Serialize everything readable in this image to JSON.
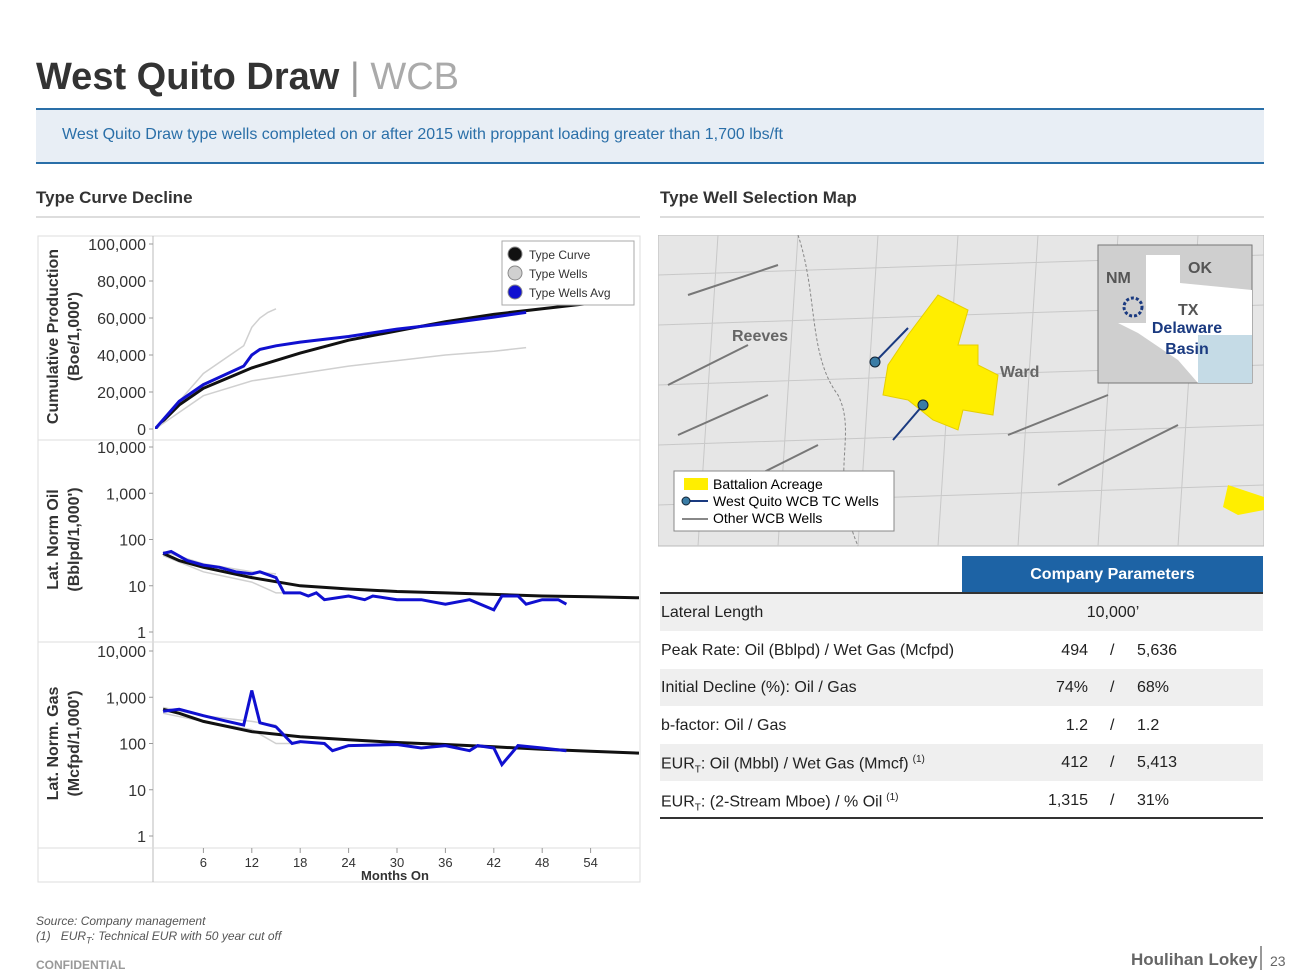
{
  "header": {
    "title": "West Quito Draw",
    "separator": "|",
    "suffix": "WCB",
    "banner": "West Quito Draw type wells completed on or after 2015 with proppant loading greater than 1,700 lbs/ft"
  },
  "left_section": "Type Curve Decline",
  "right_section": "Type Well Selection Map",
  "chart_data": [
    {
      "type": "line",
      "scale": "linear",
      "ylabel": [
        "Cumulative Production",
        "(Boe/1,000')"
      ],
      "xlim": [
        0,
        60
      ],
      "ylim": [
        0,
        100000
      ],
      "yticks": [
        0,
        {
          "value": 20000,
          "label": "20,000"
        },
        {
          "value": 40000,
          "label": "40,000"
        },
        {
          "value": 60000,
          "label": "60,000"
        },
        {
          "value": 80000,
          "label": "80,000"
        },
        {
          "value": 100000,
          "label": "100,000"
        }
      ],
      "series": [
        {
          "name": "Type Curve",
          "color": "#111111",
          "x": [
            0,
            3,
            6,
            12,
            18,
            24,
            30,
            36,
            42,
            48,
            54,
            57
          ],
          "values": [
            0,
            13000,
            22000,
            33000,
            41000,
            48000,
            53000,
            58000,
            62000,
            65000,
            68000,
            69000
          ]
        },
        {
          "name": "Type Wells",
          "color": "#d0d0d0",
          "x": [
            0,
            6,
            11,
            12,
            13,
            14,
            15
          ],
          "values": [
            0,
            30000,
            45000,
            55000,
            60000,
            63000,
            65000
          ]
        },
        {
          "color": "#d0d0d0",
          "x": [
            0,
            6,
            12,
            18,
            24,
            30,
            36,
            42,
            46
          ],
          "values": [
            0,
            18000,
            26000,
            30000,
            34000,
            37000,
            40000,
            42000,
            44000
          ]
        },
        {
          "name": "Type Wells Avg",
          "color": "#1010d0",
          "x": [
            0,
            3,
            6,
            9,
            11,
            12,
            13,
            15,
            18,
            24,
            30,
            36,
            42,
            46
          ],
          "values": [
            0,
            15000,
            24000,
            30000,
            34000,
            40000,
            43000,
            45000,
            47000,
            50000,
            54000,
            57000,
            60500,
            63000
          ]
        }
      ]
    },
    {
      "type": "line",
      "scale": "log",
      "ylabel": [
        "Lat. Norm Oil",
        "(Bblpd/1,000')"
      ],
      "xlim": [
        0,
        60
      ],
      "ylim": [
        1,
        10000
      ],
      "yticks": [
        1,
        10,
        100,
        {
          "value": 1000,
          "label": "1,000"
        },
        {
          "value": 10000,
          "label": "10,000"
        }
      ],
      "series": [
        {
          "color": "#d0d0d0",
          "x": [
            1,
            6,
            12,
            15,
            18
          ],
          "values": [
            45,
            20,
            12,
            7,
            7
          ]
        },
        {
          "color": "#d0d0d0",
          "x": [
            1,
            6,
            12,
            15
          ],
          "values": [
            55,
            30,
            20,
            18
          ]
        },
        {
          "color": "#111111",
          "x": [
            1,
            3,
            6,
            12,
            18,
            24,
            30,
            36,
            42,
            48,
            54,
            60
          ],
          "values": [
            50,
            35,
            25,
            15,
            10,
            8.5,
            7.5,
            7,
            6.5,
            6,
            5.8,
            5.5
          ]
        },
        {
          "color": "#1010d0",
          "x": [
            1,
            2,
            4,
            6,
            8,
            10,
            12,
            13,
            15,
            16,
            18,
            19,
            20,
            21,
            24,
            26,
            27,
            30,
            33,
            36,
            39,
            42,
            43,
            45,
            46,
            48,
            50,
            51
          ],
          "values": [
            50,
            55,
            35,
            28,
            25,
            20,
            18,
            20,
            15,
            7,
            7,
            6,
            7,
            5,
            6,
            5,
            6,
            5,
            5,
            4,
            5,
            3,
            6,
            6,
            4,
            5,
            5,
            4
          ]
        }
      ]
    },
    {
      "type": "line",
      "scale": "log",
      "ylabel": [
        "Lat. Norm. Gas",
        "(Mcfpd/1,000')"
      ],
      "xlim": [
        0,
        60
      ],
      "ylim": [
        1,
        10000
      ],
      "yticks": [
        1,
        10,
        100,
        {
          "value": 1000,
          "label": "1,000"
        },
        {
          "value": 10000,
          "label": "10,000"
        }
      ],
      "xticks": [
        6,
        12,
        18,
        24,
        30,
        36,
        42,
        48,
        54
      ],
      "xlabel": "Months On",
      "series": [
        {
          "color": "#d0d0d0",
          "x": [
            1,
            6,
            12,
            15,
            18
          ],
          "values": [
            450,
            300,
            200,
            100,
            100
          ]
        },
        {
          "color": "#d0d0d0",
          "x": [
            1,
            6,
            12,
            15
          ],
          "values": [
            600,
            400,
            300,
            250
          ]
        },
        {
          "color": "#111111",
          "x": [
            1,
            3,
            6,
            12,
            18,
            24,
            30,
            36,
            42,
            48,
            54,
            60
          ],
          "values": [
            550,
            450,
            300,
            180,
            140,
            120,
            105,
            95,
            85,
            75,
            68,
            62
          ]
        },
        {
          "color": "#1010d0",
          "x": [
            1,
            3,
            6,
            9,
            11,
            12,
            13,
            15,
            17,
            18,
            21,
            22,
            24,
            30,
            33,
            36,
            39,
            40,
            42,
            43,
            45,
            48,
            51
          ],
          "values": [
            500,
            550,
            400,
            300,
            250,
            1400,
            280,
            230,
            100,
            110,
            100,
            70,
            90,
            95,
            80,
            90,
            70,
            90,
            80,
            35,
            90,
            80,
            70
          ]
        }
      ]
    }
  ],
  "map": {
    "labels": [
      "Reeves",
      "Ward"
    ],
    "inset": [
      "NM",
      "OK",
      "TX",
      "Delaware",
      "Basin"
    ],
    "legend": [
      "Battalion Acreage",
      "West Quito WCB TC Wells",
      "Other WCB Wells"
    ]
  },
  "table": {
    "header": "Company Parameters",
    "rows": [
      {
        "label": "Lateral Length",
        "value": [
          "10,000’"
        ]
      },
      {
        "label": "Peak Rate: Oil (Bblpd) / Wet Gas (Mcfpd)",
        "value": [
          "494",
          "/",
          "5,636"
        ]
      },
      {
        "label": "Initial Decline (%): Oil / Gas",
        "value": [
          "74%",
          "/",
          "68%"
        ]
      },
      {
        "label": "b-factor: Oil / Gas",
        "value": [
          "1.2",
          "/",
          "1.2"
        ]
      },
      {
        "label": "EUR",
        "label_sub": "T",
        "label_rest": ": Oil (Mbbl) / Wet Gas (Mmcf)",
        "note": "(1)",
        "value": [
          "412",
          "/",
          "5,413"
        ]
      },
      {
        "label": "EUR",
        "label_sub": "T",
        "label_rest": ": (2-Stream Mboe) / % Oil",
        "note": "(1)",
        "value": [
          "1,315",
          "/",
          "31%"
        ]
      }
    ]
  },
  "footer": {
    "source": "Source: Company management",
    "note_num": "(1)",
    "note_a": "EUR",
    "note_sub": "T",
    "note_b": ": Technical EUR with 50 year cut off",
    "confidential": "CONFIDENTIAL",
    "brand": "Houlihan Lokey",
    "page": "23"
  }
}
